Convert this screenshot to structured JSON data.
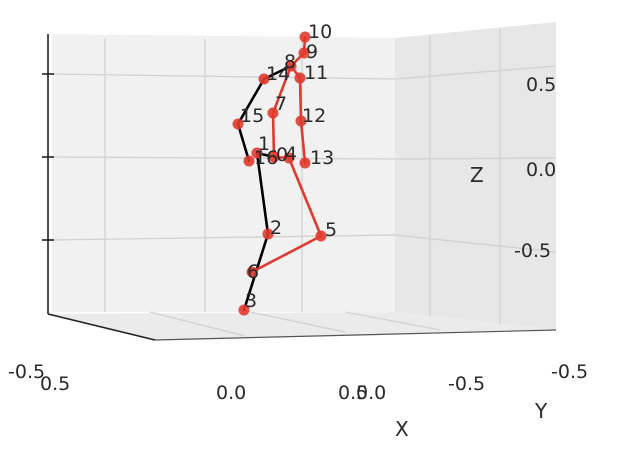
{
  "chart_data": {
    "type": "scatter",
    "subtype": "3d-skeleton-pose",
    "title": "",
    "xlabel": "X",
    "ylabel": "Y",
    "zlabel": "Z",
    "x_tick_labels": [
      "-0.5",
      "0.0",
      "0.5"
    ],
    "y_tick_labels": [
      "0.5",
      "0.0",
      "-0.5",
      "-0.5"
    ],
    "z_tick_labels": [
      "0.5",
      "0.0",
      "-0.5"
    ],
    "z_range": [
      -0.7,
      0.7
    ],
    "grid": true,
    "colors": {
      "left_chain": "#000000",
      "right_chain": "#e03a2e",
      "joint": "#e03a2e"
    },
    "joints": [
      {
        "id": "0",
        "label": "0"
      },
      {
        "id": "1",
        "label": "1"
      },
      {
        "id": "2",
        "label": "2"
      },
      {
        "id": "3",
        "label": "3"
      },
      {
        "id": "4",
        "label": "4"
      },
      {
        "id": "5",
        "label": "5"
      },
      {
        "id": "6",
        "label": "6"
      },
      {
        "id": "7",
        "label": "7"
      },
      {
        "id": "8",
        "label": "8"
      },
      {
        "id": "9",
        "label": "9"
      },
      {
        "id": "10",
        "label": "10"
      },
      {
        "id": "11",
        "label": "11"
      },
      {
        "id": "12",
        "label": "12"
      },
      {
        "id": "13",
        "label": "13"
      },
      {
        "id": "14",
        "label": "14"
      },
      {
        "id": "15",
        "label": "15"
      },
      {
        "id": "16",
        "label": "16"
      }
    ],
    "bones": [
      {
        "from": "0",
        "to": "1",
        "chain": "left"
      },
      {
        "from": "1",
        "to": "2",
        "chain": "left"
      },
      {
        "from": "2",
        "to": "3",
        "chain": "left"
      },
      {
        "from": "0",
        "to": "4",
        "chain": "right"
      },
      {
        "from": "4",
        "to": "5",
        "chain": "right"
      },
      {
        "from": "5",
        "to": "6",
        "chain": "right"
      },
      {
        "from": "0",
        "to": "7",
        "chain": "right"
      },
      {
        "from": "7",
        "to": "8",
        "chain": "right"
      },
      {
        "from": "8",
        "to": "9",
        "chain": "right"
      },
      {
        "from": "9",
        "to": "10",
        "chain": "right"
      },
      {
        "from": "8",
        "to": "11",
        "chain": "right"
      },
      {
        "from": "11",
        "to": "12",
        "chain": "right"
      },
      {
        "from": "12",
        "to": "13",
        "chain": "right"
      },
      {
        "from": "8",
        "to": "14",
        "chain": "left"
      },
      {
        "from": "14",
        "to": "15",
        "chain": "left"
      },
      {
        "from": "15",
        "to": "16",
        "chain": "left"
      }
    ]
  }
}
